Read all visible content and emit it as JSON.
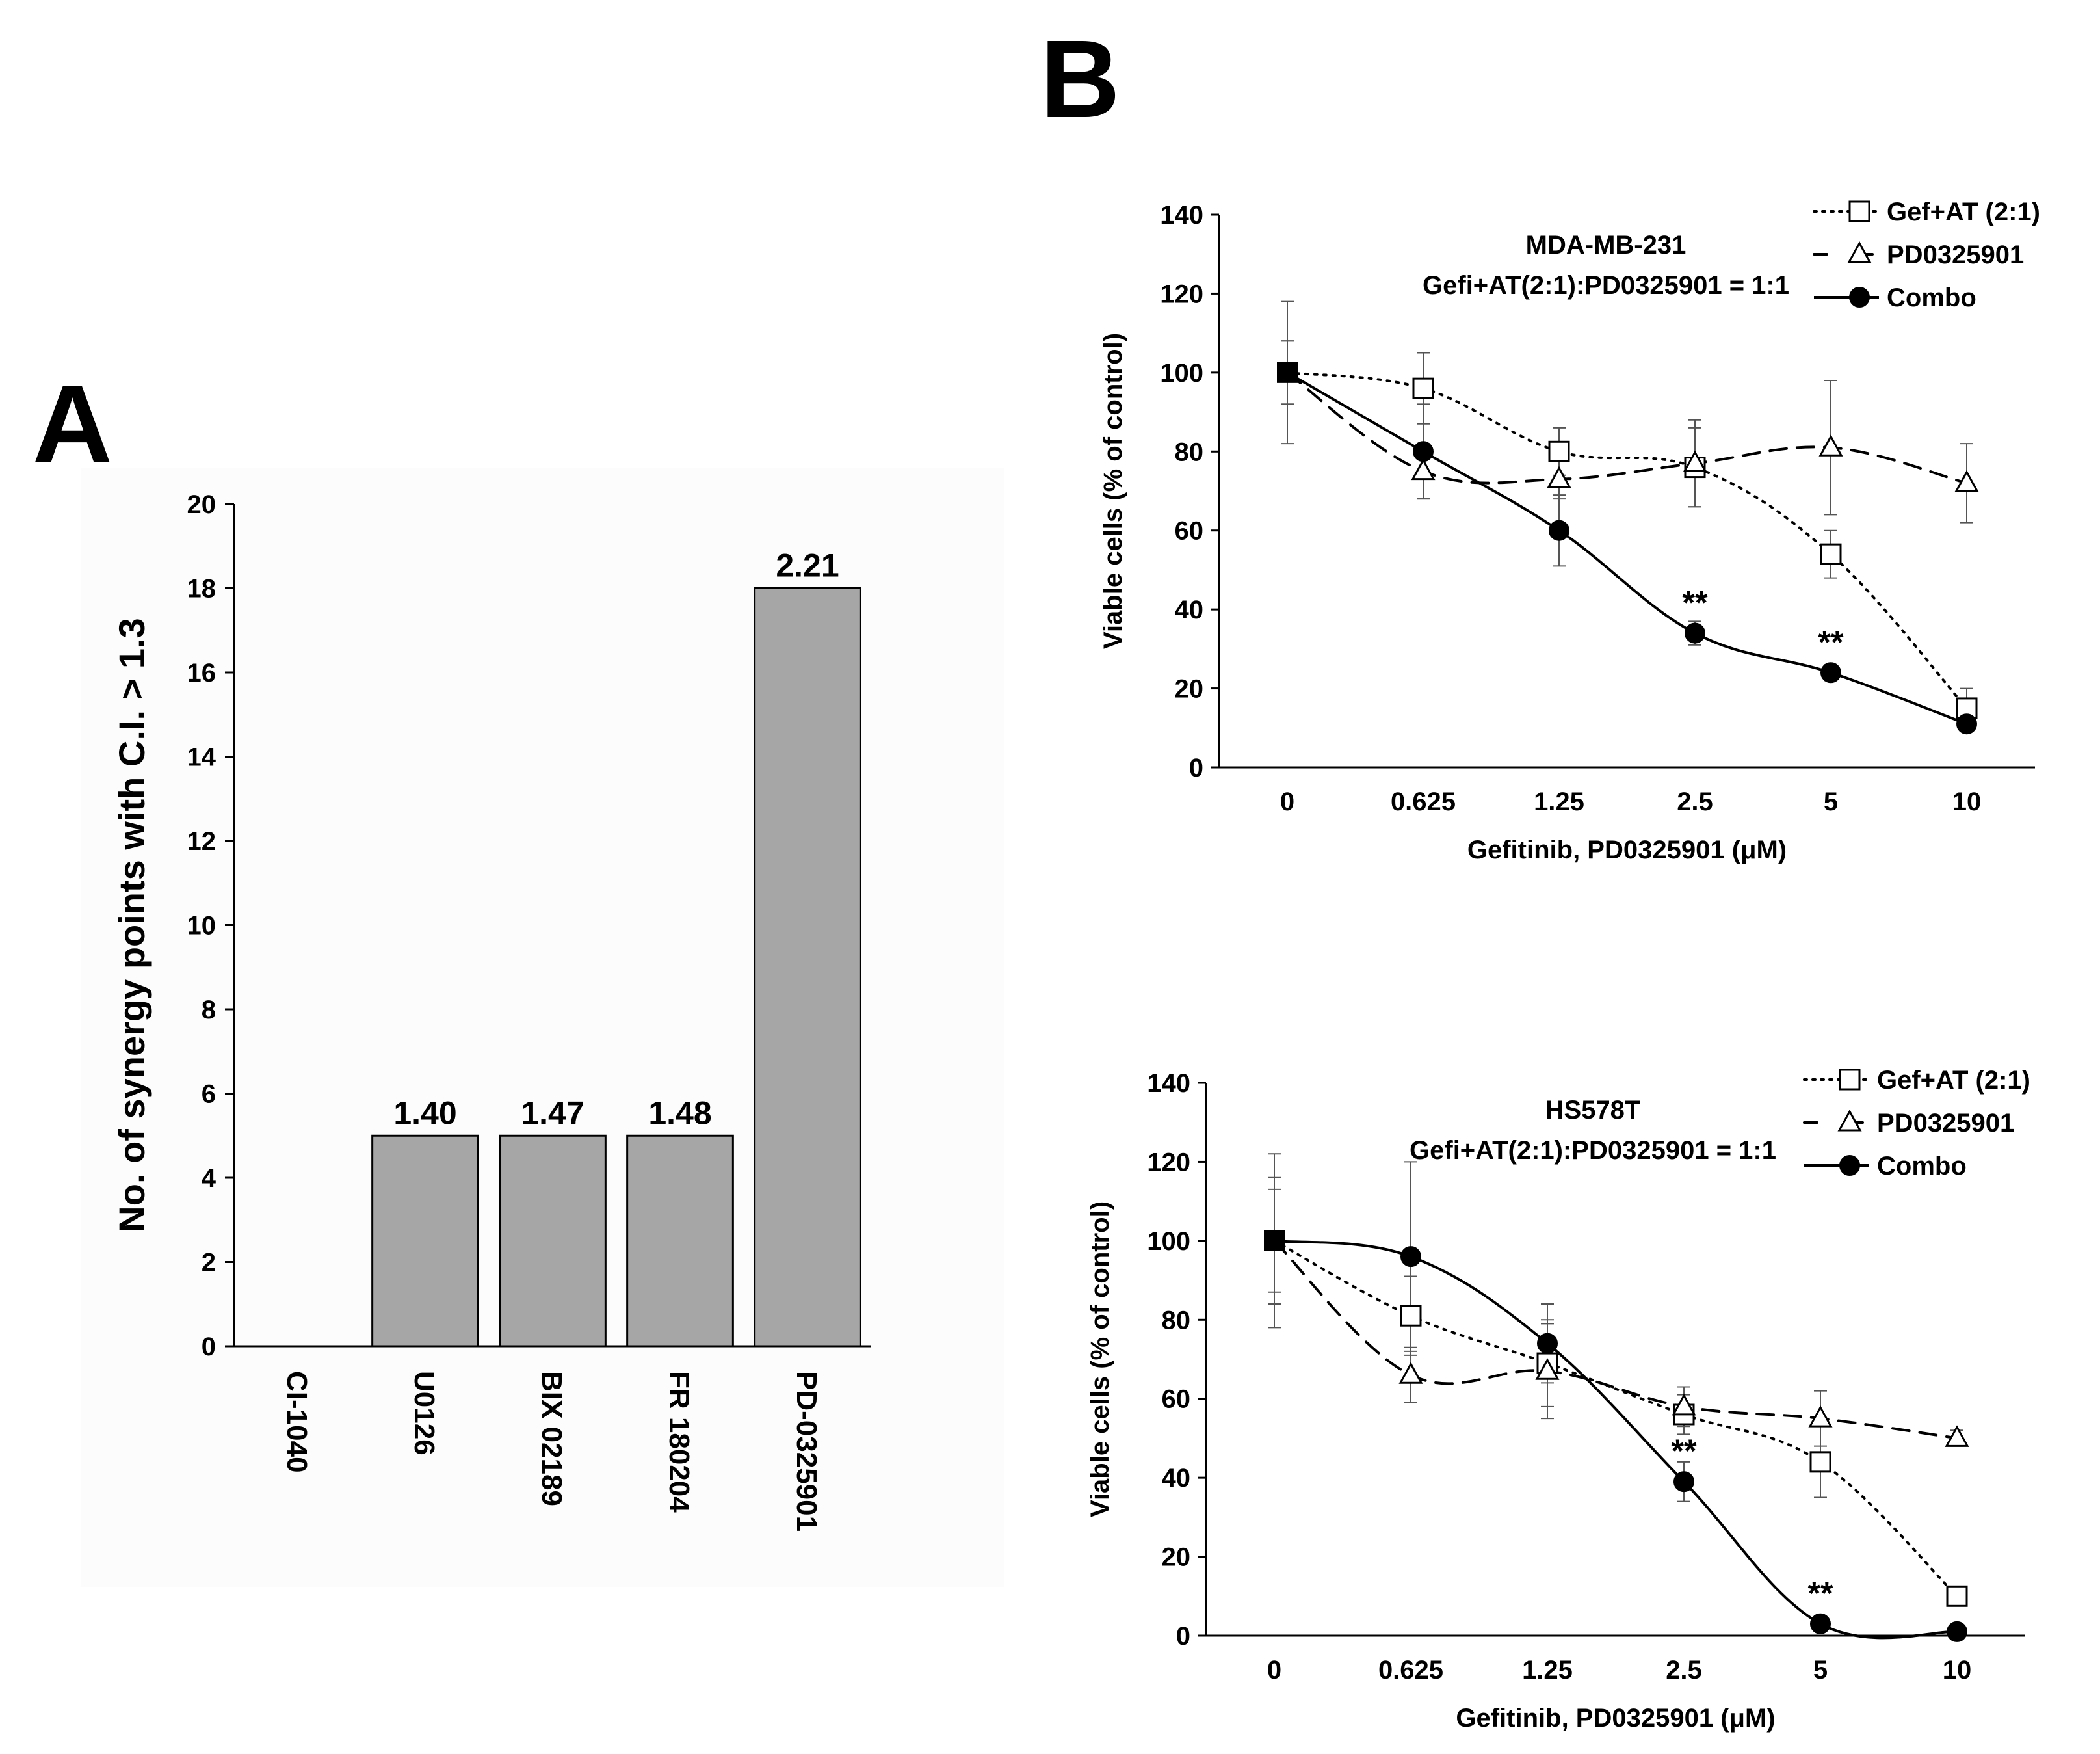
{
  "panels": {
    "a": "A",
    "b": "B"
  },
  "chart_data": [
    {
      "type": "bar",
      "ylabel": "No. of synergy points with C.I. > 1.3",
      "xlabel": "",
      "categories": [
        "CI-1040",
        "U0126",
        "BIX 02189",
        "FR 180204",
        "PD-0325901"
      ],
      "values": [
        0,
        5,
        5,
        5,
        18
      ],
      "data_labels": [
        "",
        "1.40",
        "1.47",
        "1.48",
        "2.21"
      ],
      "ylim": [
        0,
        20
      ],
      "yticks": [
        "0",
        "2",
        "4",
        "6",
        "8",
        "10",
        "12",
        "14",
        "16",
        "18",
        "20"
      ],
      "bar_color": "#a6a6a6",
      "grid": false
    },
    {
      "type": "line",
      "title": "MDA-MB-231",
      "subtitle": "Gefi+AT(2:1):PD0325901  = 1:1",
      "xlabel": "Gefitinib, PD0325901 (μM)",
      "ylabel": "Viable cells (% of control)",
      "x": [
        "0",
        "0.625",
        "1.25",
        "2.5",
        "5",
        "10"
      ],
      "ylim": [
        0,
        140
      ],
      "yticks": [
        "0",
        "20",
        "40",
        "60",
        "80",
        "100",
        "120",
        "140"
      ],
      "grid": false,
      "legend_position": "top-right",
      "series": [
        {
          "name": "Gef+AT (2:1)",
          "style": "dotted",
          "marker": "square-open",
          "values": [
            100,
            96,
            80,
            76,
            54,
            15
          ],
          "errors": [
            8,
            9,
            6,
            10,
            6,
            5
          ]
        },
        {
          "name": "PD0325901",
          "style": "dashed",
          "marker": "triangle-open",
          "values": [
            100,
            75,
            73,
            77,
            81,
            72
          ],
          "errors": [
            8,
            7,
            5,
            11,
            17,
            10
          ]
        },
        {
          "name": "Combo",
          "style": "solid",
          "marker": "circle-filled",
          "values": [
            100,
            80,
            60,
            34,
            24,
            11
          ],
          "errors": [
            18,
            12,
            9,
            3,
            2,
            1
          ]
        }
      ],
      "annotations": [
        {
          "x": "2.5",
          "y": 34,
          "text": "**"
        },
        {
          "x": "5",
          "y": 24,
          "text": "**"
        }
      ]
    },
    {
      "type": "line",
      "title": "HS578T",
      "subtitle": "Gefi+AT(2:1):PD0325901  = 1:1",
      "xlabel": "Gefitinib, PD0325901 (μM)",
      "ylabel": "Viable cells (% of control)",
      "x": [
        "0",
        "0.625",
        "1.25",
        "2.5",
        "5",
        "10"
      ],
      "ylim": [
        0,
        140
      ],
      "yticks": [
        "0",
        "20",
        "40",
        "60",
        "80",
        "100",
        "120",
        "140"
      ],
      "grid": false,
      "legend_position": "top-right",
      "series": [
        {
          "name": "Gef+AT (2:1)",
          "style": "dotted",
          "marker": "square-open",
          "values": [
            100,
            81,
            69,
            56,
            44,
            10
          ],
          "errors": [
            16,
            10,
            11,
            5,
            9,
            2
          ]
        },
        {
          "name": "PD0325901",
          "style": "dashed",
          "marker": "triangle-open",
          "values": [
            100,
            66,
            67,
            58,
            55,
            50
          ],
          "errors": [
            13,
            7,
            12,
            5,
            7,
            2
          ]
        },
        {
          "name": "Combo",
          "style": "solid",
          "marker": "circle-filled",
          "values": [
            100,
            96,
            74,
            39,
            3,
            1
          ],
          "errors": [
            22,
            24,
            10,
            5,
            1,
            1
          ]
        }
      ],
      "annotations": [
        {
          "x": "2.5",
          "y": 39,
          "text": "**"
        },
        {
          "x": "5",
          "y": 3,
          "text": "**"
        }
      ]
    }
  ]
}
